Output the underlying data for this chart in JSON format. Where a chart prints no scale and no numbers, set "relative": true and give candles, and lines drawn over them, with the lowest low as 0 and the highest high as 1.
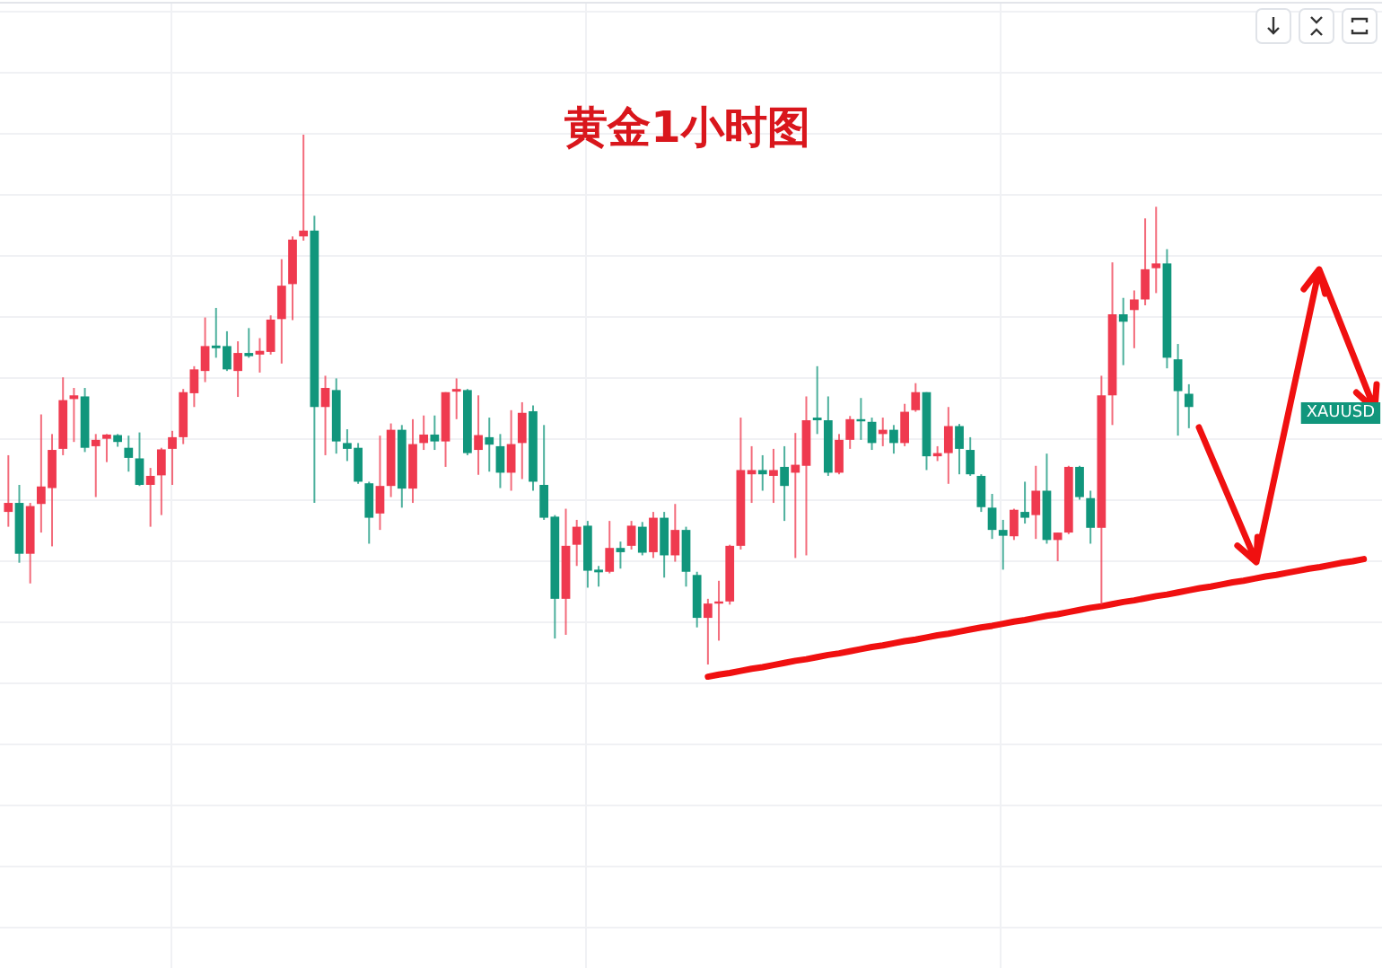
{
  "chart_data": {
    "type": "candlestick",
    "title": "黄金1小时图",
    "relative": true,
    "grid": true,
    "tick_labels": false,
    "annotations": [
      "XAUUSD"
    ],
    "categories": [
      null,
      null,
      null,
      null,
      null,
      null,
      null,
      null,
      null,
      null,
      null,
      null,
      null,
      null,
      null,
      null,
      null,
      null,
      null,
      null,
      null,
      null,
      null,
      null,
      null,
      null,
      null,
      null,
      null,
      null,
      null,
      null,
      null,
      null,
      null,
      null,
      null,
      null,
      null,
      null,
      null,
      null,
      null,
      null,
      null,
      null,
      null,
      null,
      null,
      null,
      null,
      null,
      null,
      null,
      null,
      null,
      null,
      null,
      null,
      null,
      null,
      null,
      null,
      null,
      null,
      null,
      null,
      null,
      null,
      null,
      null,
      null,
      null,
      null,
      null,
      null,
      null,
      null,
      null,
      null,
      null,
      null,
      null,
      null,
      null,
      null,
      null,
      null,
      null,
      null,
      null,
      null,
      null,
      null,
      null,
      null,
      null,
      null,
      null,
      null,
      null,
      null,
      null,
      null,
      null,
      null,
      null,
      null,
      null,
      null,
      null,
      null,
      null,
      null,
      null,
      null,
      null,
      null,
      null,
      null,
      null,
      null,
      null,
      null,
      null
    ],
    "series": [
      {
        "type": "line",
        "color": "#f01010",
        "values": [
          null,
          null,
          null,
          null,
          null,
          null,
          null,
          null,
          null,
          null,
          null,
          null,
          null,
          null,
          null,
          null,
          null,
          null,
          null,
          null,
          null,
          null,
          null,
          null,
          null,
          null,
          null,
          null,
          null,
          null,
          null,
          null,
          null,
          null,
          null,
          null,
          null,
          null,
          null,
          null,
          null,
          null,
          null,
          null,
          null,
          null,
          null,
          null,
          null,
          null,
          null,
          null,
          null,
          null,
          null,
          null,
          null,
          null,
          null,
          null,
          null,
          null,
          null,
          null,
          -0.023,
          -0.019,
          -0.016,
          -0.012,
          -0.008,
          -0.005,
          -0.001,
          0.003,
          0.007,
          0.01,
          0.014,
          0.018,
          0.021,
          0.025,
          0.029,
          0.033,
          0.036,
          0.04,
          0.044,
          0.047,
          0.051,
          0.055,
          0.058,
          0.062,
          0.066,
          0.07,
          0.073,
          0.077,
          0.081,
          0.084,
          0.088,
          0.092,
          0.095,
          0.099,
          0.103,
          0.107,
          0.11,
          0.114,
          0.118,
          0.121,
          0.125,
          0.129,
          0.132,
          0.136,
          0.14,
          0.144,
          0.147,
          0.151,
          0.155,
          0.158,
          0.162,
          0.166,
          0.169,
          0.173,
          0.177,
          0.181,
          0.184,
          0.188,
          0.192,
          0.195,
          0.199
        ]
      }
    ],
    "ohlc": [
      [
        0.288,
        0.395,
        0.26,
        0.305
      ],
      [
        0.305,
        0.339,
        0.192,
        0.209
      ],
      [
        0.209,
        0.305,
        0.153,
        0.299
      ],
      [
        0.303,
        0.472,
        0.249,
        0.336
      ],
      [
        0.333,
        0.435,
        0.223,
        0.405
      ],
      [
        0.407,
        0.542,
        0.395,
        0.499
      ],
      [
        0.501,
        0.522,
        0.42,
        0.508
      ],
      [
        0.506,
        0.522,
        0.401,
        0.409
      ],
      [
        0.412,
        0.435,
        0.316,
        0.424
      ],
      [
        0.426,
        0.435,
        0.382,
        0.434
      ],
      [
        0.433,
        0.435,
        0.411,
        0.42
      ],
      [
        0.409,
        0.432,
        0.364,
        0.39
      ],
      [
        0.389,
        0.438,
        0.337,
        0.339
      ],
      [
        0.339,
        0.371,
        0.26,
        0.356
      ],
      [
        0.357,
        0.409,
        0.282,
        0.406
      ],
      [
        0.407,
        0.441,
        0.339,
        0.429
      ],
      [
        0.429,
        0.52,
        0.416,
        0.514
      ],
      [
        0.512,
        0.563,
        0.486,
        0.557
      ],
      [
        0.554,
        0.655,
        0.533,
        0.601
      ],
      [
        0.602,
        0.673,
        0.579,
        0.597
      ],
      [
        0.601,
        0.629,
        0.554,
        0.557
      ],
      [
        0.554,
        0.61,
        0.505,
        0.588
      ],
      [
        0.588,
        0.635,
        0.579,
        0.582
      ],
      [
        0.585,
        0.616,
        0.551,
        0.592
      ],
      [
        0.59,
        0.659,
        0.585,
        0.651
      ],
      [
        0.652,
        0.765,
        0.568,
        0.715
      ],
      [
        0.718,
        0.808,
        0.65,
        0.802
      ],
      [
        0.808,
        1.0,
        0.8,
        0.819
      ],
      [
        0.819,
        0.847,
        0.305,
        0.486
      ],
      [
        0.486,
        0.545,
        0.395,
        0.522
      ],
      [
        0.518,
        0.54,
        0.398,
        0.421
      ],
      [
        0.418,
        0.444,
        0.384,
        0.407
      ],
      [
        0.409,
        0.418,
        0.341,
        0.345
      ],
      [
        0.342,
        0.345,
        0.228,
        0.277
      ],
      [
        0.285,
        0.432,
        0.254,
        0.337
      ],
      [
        0.337,
        0.455,
        0.316,
        0.443
      ],
      [
        0.443,
        0.452,
        0.296,
        0.332
      ],
      [
        0.332,
        0.463,
        0.305,
        0.416
      ],
      [
        0.418,
        0.47,
        0.405,
        0.434
      ],
      [
        0.434,
        0.47,
        0.405,
        0.421
      ],
      [
        0.421,
        0.514,
        0.373,
        0.514
      ],
      [
        0.515,
        0.54,
        0.463,
        0.52
      ],
      [
        0.518,
        0.52,
        0.395,
        0.399
      ],
      [
        0.405,
        0.508,
        0.358,
        0.433
      ],
      [
        0.429,
        0.466,
        0.364,
        0.415
      ],
      [
        0.412,
        0.435,
        0.333,
        0.362
      ],
      [
        0.362,
        0.48,
        0.328,
        0.416
      ],
      [
        0.418,
        0.495,
        0.35,
        0.475
      ],
      [
        0.478,
        0.489,
        0.328,
        0.345
      ],
      [
        0.339,
        0.452,
        0.273,
        0.277
      ],
      [
        0.279,
        0.282,
        0.049,
        0.124
      ],
      [
        0.124,
        0.294,
        0.056,
        0.224
      ],
      [
        0.226,
        0.273,
        0.186,
        0.26
      ],
      [
        0.262,
        0.271,
        0.145,
        0.177
      ],
      [
        0.179,
        0.186,
        0.147,
        0.174
      ],
      [
        0.175,
        0.271,
        0.172,
        0.22
      ],
      [
        0.22,
        0.232,
        0.181,
        0.212
      ],
      [
        0.224,
        0.271,
        0.217,
        0.262
      ],
      [
        0.26,
        0.269,
        0.206,
        0.211
      ],
      [
        0.212,
        0.288,
        0.201,
        0.277
      ],
      [
        0.277,
        0.288,
        0.164,
        0.206
      ],
      [
        0.206,
        0.303,
        0.194,
        0.254
      ],
      [
        0.254,
        0.26,
        0.147,
        0.175
      ],
      [
        0.169,
        0.175,
        0.07,
        0.088
      ],
      [
        0.088,
        0.124,
        0.0,
        0.115
      ],
      [
        0.115,
        0.158,
        0.045,
        0.119
      ],
      [
        0.119,
        0.226,
        0.113,
        0.224
      ],
      [
        0.224,
        0.466,
        0.217,
        0.367
      ],
      [
        0.359,
        0.412,
        0.305,
        0.367
      ],
      [
        0.367,
        0.395,
        0.328,
        0.359
      ],
      [
        0.356,
        0.407,
        0.305,
        0.367
      ],
      [
        0.373,
        0.412,
        0.271,
        0.337
      ],
      [
        0.362,
        0.437,
        0.201,
        0.377
      ],
      [
        0.375,
        0.506,
        0.206,
        0.461
      ],
      [
        0.466,
        0.563,
        0.435,
        0.461
      ],
      [
        0.461,
        0.506,
        0.356,
        0.362
      ],
      [
        0.362,
        0.435,
        0.359,
        0.424
      ],
      [
        0.424,
        0.469,
        0.407,
        0.463
      ],
      [
        0.463,
        0.503,
        0.424,
        0.459
      ],
      [
        0.458,
        0.466,
        0.405,
        0.418
      ],
      [
        0.435,
        0.466,
        0.412,
        0.443
      ],
      [
        0.443,
        0.452,
        0.398,
        0.418
      ],
      [
        0.418,
        0.492,
        0.412,
        0.477
      ],
      [
        0.48,
        0.531,
        0.477,
        0.514
      ],
      [
        0.514,
        0.514,
        0.367,
        0.393
      ],
      [
        0.393,
        0.412,
        0.384,
        0.399
      ],
      [
        0.399,
        0.486,
        0.341,
        0.45
      ],
      [
        0.45,
        0.454,
        0.359,
        0.407
      ],
      [
        0.405,
        0.429,
        0.356,
        0.359
      ],
      [
        0.356,
        0.359,
        0.288,
        0.297
      ],
      [
        0.296,
        0.322,
        0.237,
        0.254
      ],
      [
        0.254,
        0.273,
        0.179,
        0.243
      ],
      [
        0.242,
        0.294,
        0.235,
        0.292
      ],
      [
        0.288,
        0.345,
        0.266,
        0.277
      ],
      [
        0.282,
        0.375,
        0.237,
        0.328
      ],
      [
        0.328,
        0.398,
        0.228,
        0.235
      ],
      [
        0.235,
        0.249,
        0.195,
        0.249
      ],
      [
        0.249,
        0.375,
        0.246,
        0.373
      ],
      [
        0.373,
        0.375,
        0.311,
        0.316
      ],
      [
        0.314,
        0.328,
        0.228,
        0.258
      ],
      [
        0.258,
        0.545,
        0.113,
        0.508
      ],
      [
        0.508,
        0.759,
        0.452,
        0.661
      ],
      [
        0.661,
        0.692,
        0.565,
        0.647
      ],
      [
        0.669,
        0.706,
        0.597,
        0.689
      ],
      [
        0.689,
        0.842,
        0.678,
        0.746
      ],
      [
        0.748,
        0.864,
        0.701,
        0.757
      ],
      [
        0.757,
        0.784,
        0.559,
        0.579
      ],
      [
        0.576,
        0.605,
        0.432,
        0.516
      ],
      [
        0.511,
        0.529,
        0.446,
        0.486
      ],
      null,
      null,
      null,
      null,
      null,
      null,
      null,
      null,
      null,
      null,
      null,
      null,
      null,
      null,
      null,
      null
    ]
  }
}
